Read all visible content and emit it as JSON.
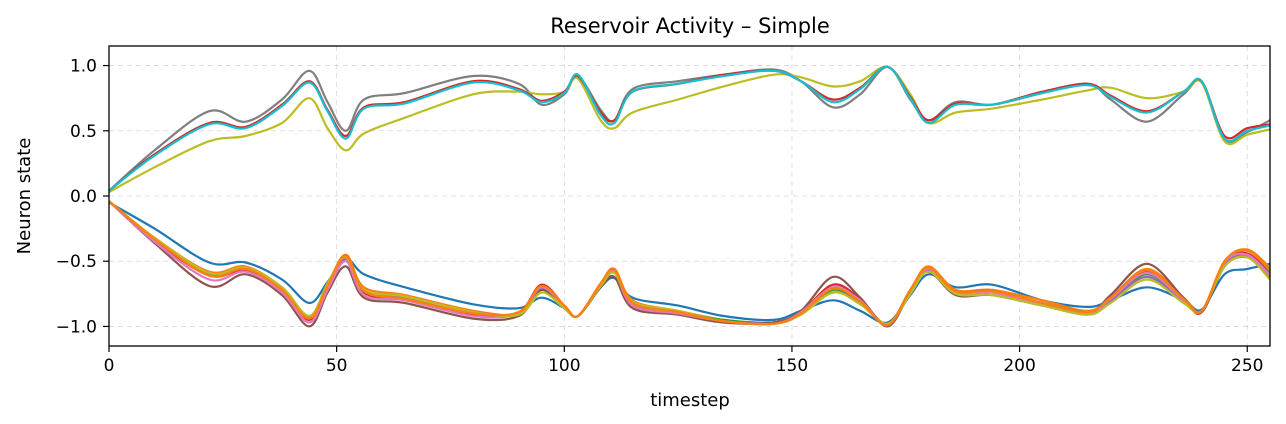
{
  "chart_data": {
    "type": "line",
    "title": "Reservoir Activity – Simple",
    "xlabel": "timestep",
    "ylabel": "Neuron state",
    "xlim": [
      0,
      255
    ],
    "ylim": [
      -1.15,
      1.15
    ],
    "xticks": [
      0,
      50,
      100,
      150,
      200,
      250
    ],
    "yticks": [
      -1.0,
      -0.5,
      0.0,
      0.5,
      1.0
    ],
    "xtick_labels": [
      "0",
      "50",
      "100",
      "150",
      "200",
      "250"
    ],
    "ytick_labels": [
      "−1.0",
      "−0.5",
      "0.0",
      "0.5",
      "1.0"
    ],
    "grid": true,
    "legend": "none",
    "series": [
      {
        "color": "#1f77b4",
        "x": [
          0,
          10,
          22,
          30,
          38,
          44,
          48,
          52,
          56,
          65,
          80,
          90,
          95,
          100,
          103,
          108,
          111,
          115,
          125,
          135,
          146,
          152,
          159,
          165,
          171,
          176,
          180,
          186,
          194,
          205,
          215,
          220,
          228,
          236,
          240,
          245,
          250,
          255
        ],
        "y": [
          -0.05,
          -0.25,
          -0.51,
          -0.51,
          -0.64,
          -0.82,
          -0.66,
          -0.48,
          -0.6,
          -0.7,
          -0.83,
          -0.86,
          -0.78,
          -0.86,
          -0.92,
          -0.7,
          -0.63,
          -0.78,
          -0.84,
          -0.92,
          -0.95,
          -0.88,
          -0.8,
          -0.88,
          -0.97,
          -0.76,
          -0.6,
          -0.7,
          -0.68,
          -0.8,
          -0.85,
          -0.8,
          -0.7,
          -0.8,
          -0.87,
          -0.6,
          -0.56,
          -0.52
        ]
      },
      {
        "color": "#ff7f0e",
        "x": [
          0,
          10,
          22,
          30,
          38,
          44,
          48,
          52,
          56,
          65,
          80,
          90,
          95,
          100,
          103,
          108,
          111,
          115,
          125,
          135,
          146,
          152,
          159,
          165,
          171,
          176,
          180,
          186,
          194,
          205,
          215,
          220,
          228,
          236,
          240,
          245,
          250,
          255
        ],
        "y": [
          -0.04,
          -0.32,
          -0.58,
          -0.54,
          -0.7,
          -0.92,
          -0.68,
          -0.45,
          -0.7,
          -0.76,
          -0.88,
          -0.9,
          -0.7,
          -0.84,
          -0.92,
          -0.68,
          -0.56,
          -0.8,
          -0.88,
          -0.95,
          -0.98,
          -0.9,
          -0.7,
          -0.8,
          -0.98,
          -0.72,
          -0.54,
          -0.72,
          -0.72,
          -0.8,
          -0.88,
          -0.78,
          -0.56,
          -0.78,
          -0.88,
          -0.5,
          -0.41,
          -0.55
        ]
      },
      {
        "color": "#2ca02c",
        "x": [
          0,
          10,
          22,
          30,
          38,
          44,
          48,
          52,
          56,
          65,
          80,
          90,
          95,
          100,
          103,
          108,
          111,
          115,
          125,
          135,
          146,
          152,
          159,
          165,
          171,
          176,
          180,
          186,
          194,
          205,
          215,
          220,
          228,
          236,
          240,
          245,
          250,
          255
        ],
        "y": [
          -0.04,
          -0.33,
          -0.6,
          -0.56,
          -0.72,
          -0.94,
          -0.69,
          -0.47,
          -0.72,
          -0.78,
          -0.9,
          -0.9,
          -0.72,
          -0.85,
          -0.92,
          -0.68,
          -0.58,
          -0.82,
          -0.89,
          -0.95,
          -0.97,
          -0.9,
          -0.72,
          -0.82,
          -0.98,
          -0.73,
          -0.57,
          -0.74,
          -0.74,
          -0.82,
          -0.89,
          -0.8,
          -0.6,
          -0.8,
          -0.88,
          -0.52,
          -0.45,
          -0.58
        ]
      },
      {
        "color": "#d62728",
        "x": [
          0,
          10,
          22,
          30,
          38,
          44,
          48,
          52,
          56,
          65,
          80,
          90,
          95,
          100,
          103,
          108,
          111,
          115,
          125,
          135,
          146,
          152,
          159,
          165,
          171,
          176,
          180,
          186,
          194,
          205,
          215,
          220,
          228,
          236,
          240,
          245,
          250,
          255
        ],
        "y": [
          -0.04,
          -0.34,
          -0.61,
          -0.57,
          -0.73,
          -0.95,
          -0.7,
          -0.46,
          -0.74,
          -0.79,
          -0.91,
          -0.89,
          -0.68,
          -0.84,
          -0.92,
          -0.67,
          -0.57,
          -0.84,
          -0.9,
          -0.96,
          -0.97,
          -0.89,
          -0.68,
          -0.79,
          -0.99,
          -0.72,
          -0.56,
          -0.73,
          -0.73,
          -0.83,
          -0.9,
          -0.79,
          -0.58,
          -0.8,
          -0.89,
          -0.51,
          -0.44,
          -0.6
        ]
      },
      {
        "color": "#9467bd",
        "x": [
          0,
          10,
          22,
          30,
          38,
          44,
          48,
          52,
          56,
          65,
          80,
          90,
          95,
          100,
          103,
          108,
          111,
          115,
          125,
          135,
          146,
          152,
          159,
          165,
          171,
          176,
          180,
          186,
          194,
          205,
          215,
          220,
          228,
          236,
          240,
          245,
          250,
          255
        ],
        "y": [
          -0.04,
          -0.33,
          -0.6,
          -0.56,
          -0.71,
          -0.93,
          -0.68,
          -0.48,
          -0.73,
          -0.78,
          -0.89,
          -0.9,
          -0.71,
          -0.85,
          -0.92,
          -0.68,
          -0.58,
          -0.83,
          -0.89,
          -0.96,
          -0.97,
          -0.9,
          -0.74,
          -0.82,
          -0.98,
          -0.74,
          -0.57,
          -0.73,
          -0.73,
          -0.82,
          -0.89,
          -0.8,
          -0.62,
          -0.81,
          -0.88,
          -0.53,
          -0.46,
          -0.6
        ]
      },
      {
        "color": "#8c564b",
        "x": [
          0,
          10,
          22,
          30,
          38,
          44,
          48,
          52,
          56,
          65,
          80,
          90,
          95,
          100,
          103,
          108,
          111,
          115,
          125,
          135,
          146,
          152,
          159,
          165,
          171,
          176,
          180,
          186,
          194,
          205,
          215,
          220,
          228,
          236,
          240,
          245,
          250,
          255
        ],
        "y": [
          -0.04,
          -0.36,
          -0.69,
          -0.6,
          -0.76,
          -1.0,
          -0.74,
          -0.54,
          -0.78,
          -0.82,
          -0.94,
          -0.92,
          -0.72,
          -0.86,
          -0.92,
          -0.7,
          -0.62,
          -0.86,
          -0.91,
          -0.97,
          -0.97,
          -0.88,
          -0.62,
          -0.78,
          -1.0,
          -0.74,
          -0.58,
          -0.76,
          -0.76,
          -0.84,
          -0.9,
          -0.76,
          -0.52,
          -0.78,
          -0.89,
          -0.54,
          -0.47,
          -0.62
        ]
      },
      {
        "color": "#e377c2",
        "x": [
          0,
          10,
          22,
          30,
          38,
          44,
          48,
          52,
          56,
          65,
          80,
          90,
          95,
          100,
          103,
          108,
          111,
          115,
          125,
          135,
          146,
          152,
          159,
          165,
          171,
          176,
          180,
          186,
          194,
          205,
          215,
          220,
          228,
          236,
          240,
          245,
          250,
          255
        ],
        "y": [
          -0.04,
          -0.35,
          -0.64,
          -0.58,
          -0.74,
          -0.97,
          -0.72,
          -0.5,
          -0.76,
          -0.8,
          -0.92,
          -0.9,
          -0.7,
          -0.85,
          -0.92,
          -0.68,
          -0.58,
          -0.84,
          -0.9,
          -0.96,
          -0.98,
          -0.89,
          -0.7,
          -0.8,
          -0.99,
          -0.73,
          -0.56,
          -0.74,
          -0.74,
          -0.83,
          -0.9,
          -0.79,
          -0.59,
          -0.8,
          -0.88,
          -0.51,
          -0.45,
          -0.61
        ]
      },
      {
        "color": "#bcbd22",
        "x": [
          0,
          10,
          22,
          30,
          38,
          44,
          48,
          52,
          56,
          65,
          80,
          90,
          95,
          100,
          103,
          108,
          111,
          115,
          125,
          135,
          146,
          152,
          159,
          165,
          171,
          176,
          180,
          186,
          194,
          205,
          215,
          220,
          228,
          236,
          240,
          245,
          250,
          255
        ],
        "y": [
          -0.04,
          -0.32,
          -0.59,
          -0.55,
          -0.7,
          -0.92,
          -0.67,
          -0.47,
          -0.72,
          -0.77,
          -0.89,
          -0.91,
          -0.74,
          -0.86,
          -0.92,
          -0.69,
          -0.59,
          -0.81,
          -0.88,
          -0.96,
          -0.98,
          -0.91,
          -0.74,
          -0.83,
          -0.98,
          -0.75,
          -0.58,
          -0.75,
          -0.76,
          -0.84,
          -0.91,
          -0.82,
          -0.64,
          -0.82,
          -0.88,
          -0.54,
          -0.47,
          -0.64
        ]
      },
      {
        "color": "#ff7f0e",
        "x": [
          0,
          10,
          22,
          30,
          38,
          44,
          48,
          52,
          56,
          65,
          80,
          90,
          95,
          100,
          103,
          108,
          111,
          115,
          125,
          135,
          146,
          152,
          159,
          165,
          171,
          176,
          180,
          186,
          194,
          205,
          215,
          220,
          228,
          236,
          240,
          245,
          250,
          255
        ],
        "y": [
          -0.04,
          -0.33,
          -0.61,
          -0.56,
          -0.72,
          -0.94,
          -0.69,
          -0.46,
          -0.73,
          -0.79,
          -0.9,
          -0.89,
          -0.69,
          -0.84,
          -0.92,
          -0.67,
          -0.56,
          -0.82,
          -0.89,
          -0.96,
          -0.98,
          -0.9,
          -0.71,
          -0.81,
          -0.99,
          -0.72,
          -0.55,
          -0.73,
          -0.73,
          -0.82,
          -0.89,
          -0.78,
          -0.57,
          -0.79,
          -0.88,
          -0.5,
          -0.42,
          -0.57
        ]
      },
      {
        "color": "#7f7f7f",
        "x": [
          0,
          10,
          22,
          30,
          38,
          44,
          48,
          52,
          56,
          65,
          80,
          90,
          95,
          100,
          103,
          108,
          111,
          115,
          125,
          135,
          146,
          152,
          159,
          165,
          171,
          176,
          180,
          186,
          194,
          205,
          215,
          220,
          228,
          236,
          240,
          245,
          250,
          255
        ],
        "y": [
          0.04,
          0.35,
          0.65,
          0.57,
          0.74,
          0.96,
          0.72,
          0.5,
          0.74,
          0.79,
          0.92,
          0.86,
          0.7,
          0.78,
          0.92,
          0.66,
          0.58,
          0.82,
          0.88,
          0.93,
          0.97,
          0.88,
          0.68,
          0.78,
          0.99,
          0.74,
          0.58,
          0.72,
          0.7,
          0.79,
          0.86,
          0.74,
          0.57,
          0.78,
          0.87,
          0.43,
          0.49,
          0.58
        ]
      },
      {
        "color": "#bcbd22",
        "x": [
          0,
          10,
          22,
          30,
          38,
          44,
          48,
          52,
          56,
          65,
          80,
          90,
          95,
          100,
          103,
          108,
          111,
          115,
          125,
          135,
          146,
          152,
          159,
          165,
          171,
          176,
          180,
          186,
          194,
          205,
          215,
          220,
          228,
          236,
          240,
          245,
          250,
          255
        ],
        "y": [
          0.03,
          0.22,
          0.42,
          0.46,
          0.56,
          0.75,
          0.52,
          0.35,
          0.48,
          0.6,
          0.78,
          0.8,
          0.78,
          0.8,
          0.9,
          0.58,
          0.52,
          0.64,
          0.74,
          0.84,
          0.93,
          0.91,
          0.84,
          0.88,
          0.99,
          0.78,
          0.56,
          0.64,
          0.67,
          0.74,
          0.81,
          0.83,
          0.75,
          0.8,
          0.87,
          0.42,
          0.47,
          0.51
        ]
      },
      {
        "color": "#d62728",
        "x": [
          0,
          10,
          22,
          30,
          38,
          44,
          48,
          52,
          56,
          65,
          80,
          90,
          95,
          100,
          103,
          108,
          111,
          115,
          125,
          135,
          146,
          152,
          159,
          165,
          171,
          176,
          180,
          186,
          194,
          205,
          215,
          220,
          228,
          236,
          240,
          245,
          250,
          255
        ],
        "y": [
          0.04,
          0.32,
          0.56,
          0.53,
          0.7,
          0.88,
          0.66,
          0.46,
          0.68,
          0.72,
          0.88,
          0.82,
          0.73,
          0.8,
          0.92,
          0.64,
          0.58,
          0.8,
          0.86,
          0.93,
          0.96,
          0.88,
          0.74,
          0.83,
          0.99,
          0.76,
          0.58,
          0.71,
          0.7,
          0.8,
          0.86,
          0.77,
          0.65,
          0.8,
          0.88,
          0.46,
          0.52,
          0.55
        ]
      },
      {
        "color": "#17becf",
        "x": [
          0,
          10,
          22,
          30,
          38,
          44,
          48,
          52,
          56,
          65,
          80,
          90,
          95,
          100,
          103,
          108,
          111,
          115,
          125,
          135,
          146,
          152,
          159,
          165,
          171,
          176,
          180,
          186,
          194,
          205,
          215,
          220,
          228,
          236,
          240,
          245,
          250,
          255
        ],
        "y": [
          0.04,
          0.31,
          0.55,
          0.52,
          0.69,
          0.87,
          0.65,
          0.44,
          0.67,
          0.71,
          0.87,
          0.81,
          0.72,
          0.79,
          0.93,
          0.62,
          0.56,
          0.8,
          0.86,
          0.92,
          0.96,
          0.88,
          0.72,
          0.82,
          0.99,
          0.75,
          0.56,
          0.7,
          0.7,
          0.79,
          0.85,
          0.76,
          0.64,
          0.8,
          0.88,
          0.44,
          0.5,
          0.54
        ]
      }
    ]
  }
}
